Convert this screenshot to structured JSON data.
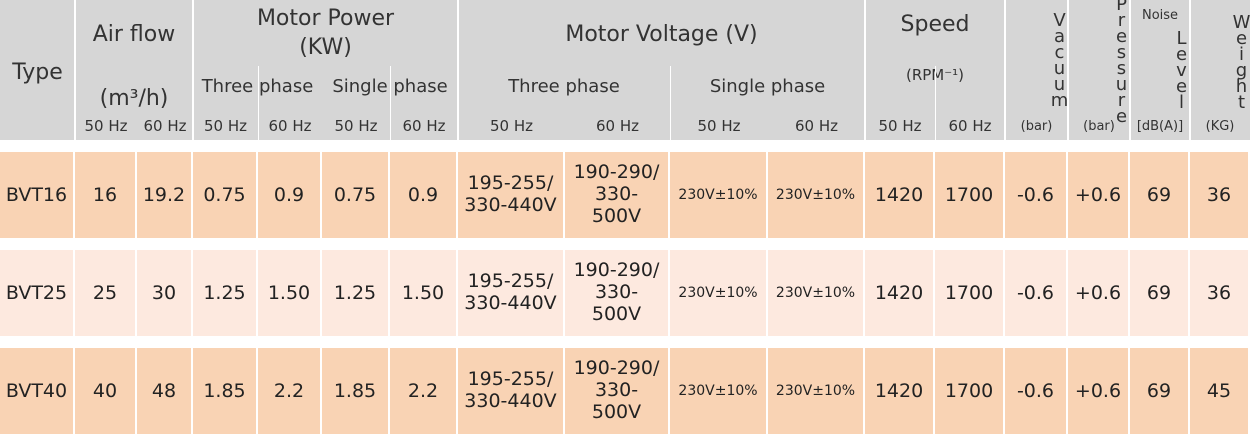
{
  "header": {
    "type": "Type",
    "air_flow": {
      "title": "Air flow",
      "unit": "(m³/h)"
    },
    "motor_power": {
      "title": "Motor Power",
      "unit": "(KW)",
      "three_phase": "Three phase",
      "single_phase": "Single phase"
    },
    "motor_voltage": {
      "title": "Motor Voltage (V)",
      "three_phase": "Three phase",
      "single_phase": "Single phase"
    },
    "speed": {
      "title": "Speed",
      "unit": "(RPM⁻¹)"
    },
    "vacuum": {
      "title": "Vacuum",
      "unit": "(bar)"
    },
    "pressure": {
      "title": "Pressure",
      "unit": "(bar)"
    },
    "noise": {
      "title": "Noise",
      "subtitle": "Level",
      "unit": "[dB(A)]"
    },
    "weight": {
      "title": "Weight",
      "unit": "(KG)"
    },
    "frequencies": [
      "50 Hz",
      "60 Hz",
      "50 Hz",
      "60 Hz",
      "50 Hz",
      "60 Hz",
      "50 Hz",
      "60 Hz",
      "50 Hz",
      "60 Hz",
      "50 Hz",
      "60 Hz"
    ]
  },
  "rows": [
    [
      "BVT16",
      "16",
      "19.2",
      "0.75",
      "0.9",
      "0.75",
      "0.9",
      "195-255/ 330-440V",
      "190-290/ 330-500V",
      "230V±10%",
      "230V±10%",
      "1420",
      "1700",
      "-0.6",
      "+0.6",
      "69",
      "36"
    ],
    [
      "BVT25",
      "25",
      "30",
      "1.25",
      "1.50",
      "1.25",
      "1.50",
      "195-255/ 330-440V",
      "190-290/ 330-500V",
      "230V±10%",
      "230V±10%",
      "1420",
      "1700",
      "-0.6",
      "+0.6",
      "69",
      "36"
    ],
    [
      "BVT40",
      "40",
      "48",
      "1.85",
      "2.2",
      "1.85",
      "2.2",
      "195-255/ 330-440V",
      "190-290/ 330-500V",
      "230V±10%",
      "230V±10%",
      "1420",
      "1700",
      "-0.6",
      "+0.6",
      "69",
      "45"
    ]
  ]
}
